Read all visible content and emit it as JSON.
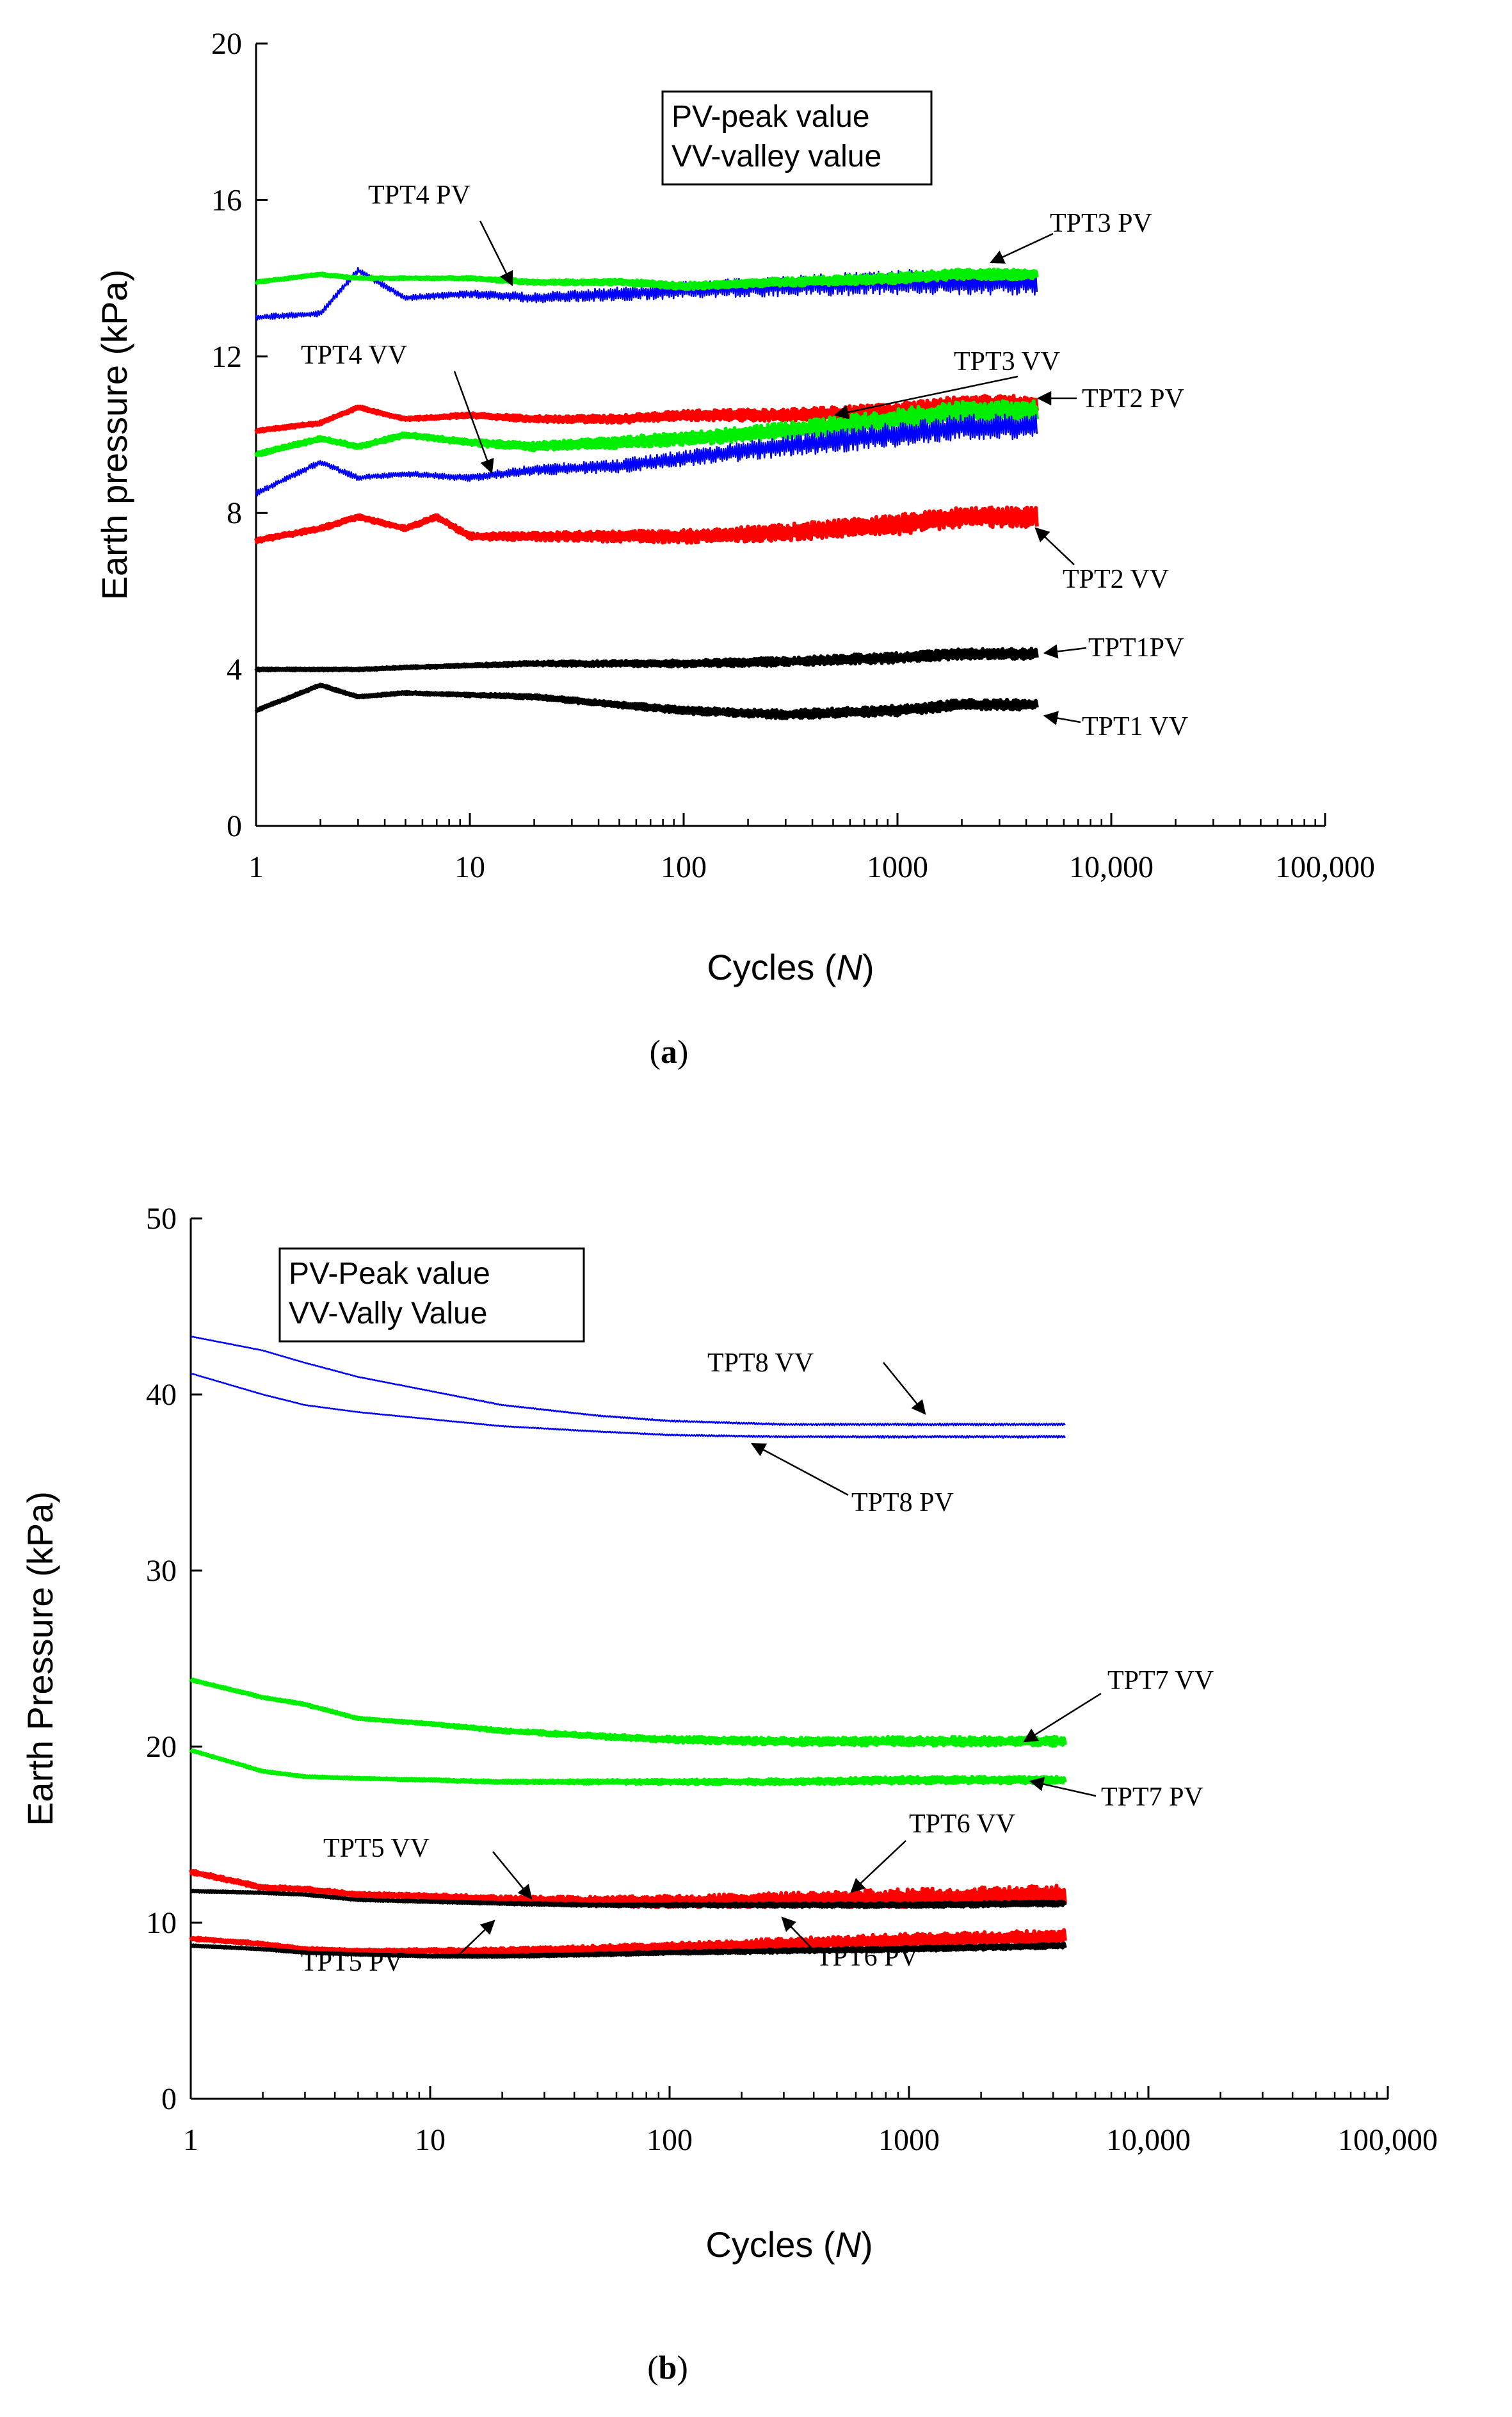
{
  "chart_data": [
    {
      "panel": "a",
      "caption": "(a)",
      "type": "line",
      "xscale": "log",
      "xlim": [
        1,
        100000
      ],
      "ylim": [
        0,
        20
      ],
      "xlabel": "Cycles (N)",
      "ylabel": "Earth pressure (kPa)",
      "xticks": [
        1,
        10,
        100,
        1000,
        10000,
        100000
      ],
      "xtick_labels": [
        "1",
        "10",
        "100",
        "1000",
        "10,000",
        "100,000"
      ],
      "yticks": [
        0,
        4,
        8,
        12,
        16,
        20
      ],
      "ytick_labels": [
        "0",
        "4",
        "8",
        "12",
        "16",
        "20"
      ],
      "legend": [
        "PV-peak value",
        "VV-valley value"
      ],
      "series": [
        {
          "name": "TPT4 PV",
          "color": "#0000ff",
          "x": [
            1,
            2,
            3,
            5,
            10,
            20,
            50,
            100,
            300,
            1000,
            2000,
            4500
          ],
          "values": [
            13.0,
            13.1,
            14.2,
            13.5,
            13.6,
            13.5,
            13.6,
            13.7,
            13.8,
            13.9,
            13.9,
            13.9
          ],
          "noise": 0.25
        },
        {
          "name": "TPT3 PV",
          "color": "#00ee00",
          "x": [
            1,
            2,
            3,
            5,
            10,
            20,
            50,
            100,
            300,
            1000,
            2000,
            4500
          ],
          "values": [
            13.9,
            14.1,
            14.0,
            14.0,
            14.0,
            13.9,
            13.9,
            13.8,
            13.9,
            14.0,
            14.1,
            14.1
          ],
          "noise": 0.1
        },
        {
          "name": "TPT2 PV",
          "color": "#ff0000",
          "x": [
            1,
            2,
            3,
            5,
            10,
            20,
            50,
            100,
            300,
            1000,
            2000,
            4500
          ],
          "values": [
            10.1,
            10.3,
            10.7,
            10.4,
            10.5,
            10.4,
            10.4,
            10.5,
            10.5,
            10.6,
            10.8,
            10.8
          ],
          "noise": 0.15
        },
        {
          "name": "TPT3 VV",
          "color": "#00ee00",
          "x": [
            1,
            2,
            3,
            5,
            10,
            20,
            50,
            100,
            300,
            1000,
            2000,
            4500
          ],
          "values": [
            9.5,
            9.9,
            9.7,
            10.0,
            9.8,
            9.7,
            9.8,
            9.9,
            10.1,
            10.4,
            10.6,
            10.6
          ],
          "noise": 0.2
        },
        {
          "name": "TPT4 VV",
          "color": "#0000ff",
          "x": [
            1,
            2,
            3,
            5,
            10,
            20,
            50,
            100,
            300,
            1000,
            2000,
            4500
          ],
          "values": [
            8.5,
            9.3,
            8.9,
            9.0,
            8.9,
            9.1,
            9.2,
            9.4,
            9.7,
            10.0,
            10.2,
            10.2
          ],
          "noise": 0.25
        },
        {
          "name": "TPT2 VV",
          "color": "#ff0000",
          "x": [
            1,
            2,
            3,
            5,
            7,
            10,
            20,
            50,
            100,
            300,
            1000,
            2000,
            4500
          ],
          "values": [
            7.3,
            7.6,
            7.9,
            7.6,
            7.9,
            7.4,
            7.4,
            7.4,
            7.4,
            7.5,
            7.7,
            7.9,
            7.9
          ],
          "noise": 0.2
        },
        {
          "name": "TPT1PV",
          "color": "#000000",
          "x": [
            1,
            2,
            3,
            5,
            10,
            20,
            50,
            100,
            300,
            1000,
            2000,
            4500
          ],
          "values": [
            4.0,
            4.0,
            4.0,
            4.05,
            4.1,
            4.15,
            4.15,
            4.15,
            4.2,
            4.3,
            4.4,
            4.4
          ],
          "noise": 0.1
        },
        {
          "name": "TPT1 VV",
          "color": "#000000",
          "x": [
            1,
            2,
            3,
            5,
            10,
            20,
            50,
            100,
            300,
            1000,
            2000,
            4500
          ],
          "values": [
            2.95,
            3.6,
            3.3,
            3.4,
            3.35,
            3.3,
            3.1,
            2.95,
            2.85,
            2.95,
            3.1,
            3.1
          ],
          "noise": 0.1
        }
      ],
      "annotations": [
        {
          "text": "TPT4  PV",
          "series": "TPT4 PV"
        },
        {
          "text": "TPT3  PV",
          "series": "TPT3 PV"
        },
        {
          "text": "TPT4  VV",
          "series": "TPT4 VV"
        },
        {
          "text": "TPT3  VV",
          "series": "TPT3 VV"
        },
        {
          "text": "TPT2  PV",
          "series": "TPT2 PV"
        },
        {
          "text": "TPT2  VV",
          "series": "TPT2 VV"
        },
        {
          "text": "TPT1PV",
          "series": "TPT1PV"
        },
        {
          "text": "TPT1  VV",
          "series": "TPT1 VV"
        }
      ]
    },
    {
      "panel": "b",
      "caption": "(b)",
      "type": "line",
      "xscale": "log",
      "xlim": [
        1,
        100000
      ],
      "ylim": [
        0,
        50
      ],
      "xlabel": "Cycles (N)",
      "ylabel": "Earth Pressure (kPa)",
      "xticks": [
        1,
        10,
        100,
        1000,
        10000,
        100000
      ],
      "xtick_labels": [
        "1",
        "10",
        "100",
        "1000",
        "10,000",
        "100,000"
      ],
      "yticks": [
        0,
        10,
        20,
        30,
        40,
        50
      ],
      "ytick_labels": [
        "0",
        "10",
        "20",
        "30",
        "40",
        "50"
      ],
      "legend": [
        "PV-Peak value",
        "VV-Vally Value"
      ],
      "series": [
        {
          "name": "TPT8 VV",
          "color": "#0000ff",
          "x": [
            1,
            2,
            3,
            5,
            10,
            20,
            50,
            100,
            300,
            1000,
            4500
          ],
          "values": [
            43.3,
            42.5,
            41.8,
            41.0,
            40.2,
            39.4,
            38.8,
            38.5,
            38.3,
            38.3,
            38.3
          ],
          "noise": 0.05
        },
        {
          "name": "TPT8 PV",
          "color": "#0000ff",
          "x": [
            1,
            2,
            3,
            5,
            10,
            20,
            50,
            100,
            300,
            1000,
            4500
          ],
          "values": [
            41.2,
            40.0,
            39.4,
            39.0,
            38.6,
            38.2,
            37.9,
            37.7,
            37.6,
            37.6,
            37.6
          ],
          "noise": 0.05
        },
        {
          "name": "TPT7 VV",
          "color": "#00ee00",
          "x": [
            1,
            2,
            3,
            5,
            10,
            20,
            50,
            100,
            300,
            1000,
            4500
          ],
          "values": [
            23.8,
            22.8,
            22.4,
            21.6,
            21.3,
            20.9,
            20.6,
            20.4,
            20.3,
            20.3,
            20.3
          ],
          "noise": 0.2
        },
        {
          "name": "TPT7 PV",
          "color": "#00ee00",
          "x": [
            1,
            2,
            3,
            5,
            10,
            20,
            50,
            100,
            300,
            1000,
            4500
          ],
          "values": [
            19.8,
            18.6,
            18.3,
            18.2,
            18.1,
            18.0,
            18.0,
            18.0,
            18.0,
            18.1,
            18.1
          ],
          "noise": 0.15
        },
        {
          "name": "TPT6 VV",
          "color": "#ff0000",
          "x": [
            1,
            2,
            3,
            5,
            10,
            20,
            50,
            100,
            300,
            1000,
            4500
          ],
          "values": [
            12.9,
            12.0,
            11.9,
            11.6,
            11.5,
            11.3,
            11.2,
            11.2,
            11.3,
            11.4,
            11.6
          ],
          "noise": 0.4
        },
        {
          "name": "TPT5 VV",
          "color": "#000000",
          "x": [
            1,
            2,
            3,
            5,
            10,
            20,
            50,
            100,
            300,
            1000,
            4500
          ],
          "values": [
            11.8,
            11.7,
            11.6,
            11.3,
            11.2,
            11.1,
            11.0,
            11.0,
            11.0,
            11.0,
            11.1
          ],
          "noise": 0.1
        },
        {
          "name": "TPT6 PV",
          "color": "#ff0000",
          "x": [
            1,
            2,
            3,
            5,
            10,
            20,
            50,
            100,
            300,
            1000,
            4500
          ],
          "values": [
            9.1,
            8.8,
            8.5,
            8.4,
            8.4,
            8.4,
            8.5,
            8.6,
            8.8,
            9.0,
            9.2
          ],
          "noise": 0.3
        },
        {
          "name": "TPT5 PV",
          "color": "#000000",
          "x": [
            1,
            2,
            3,
            5,
            10,
            20,
            50,
            100,
            300,
            1000,
            4500
          ],
          "values": [
            8.7,
            8.5,
            8.3,
            8.2,
            8.1,
            8.1,
            8.2,
            8.3,
            8.4,
            8.5,
            8.7
          ],
          "noise": 0.1
        }
      ],
      "annotations": [
        {
          "text": "TPT8  VV",
          "series": "TPT8 VV"
        },
        {
          "text": "TPT8  PV",
          "series": "TPT8 PV"
        },
        {
          "text": "TPT7  VV",
          "series": "TPT7 VV"
        },
        {
          "text": "TPT7  PV",
          "series": "TPT7 PV"
        },
        {
          "text": "TPT5  VV",
          "series": "TPT5 VV"
        },
        {
          "text": "TPT6  VV",
          "series": "TPT6 VV"
        },
        {
          "text": "TPT5  PV",
          "series": "TPT5 PV"
        },
        {
          "text": "TPT6  PV",
          "series": "TPT6 PV"
        }
      ]
    }
  ]
}
